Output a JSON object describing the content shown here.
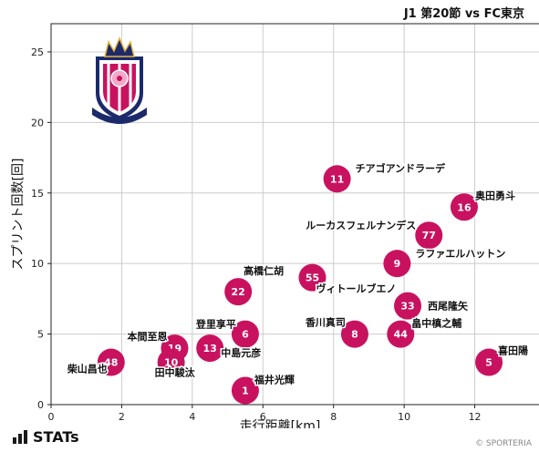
{
  "header": {
    "title": "J1 第20節 vs FC東京"
  },
  "footer": {
    "brand": "STATs",
    "copyright": "© SPORTERIA"
  },
  "colors": {
    "point": "#c8125f",
    "grid": "#cccccc",
    "axis": "#222222"
  },
  "chart_data": {
    "type": "scatter",
    "xlabel": "走行距離[km]",
    "ylabel": "スプリント回数[回]",
    "xlim": [
      0,
      14
    ],
    "ylim": [
      0,
      27
    ],
    "xticks": [
      0,
      2,
      4,
      6,
      8,
      10,
      12,
      14
    ],
    "yticks": [
      0,
      5,
      10,
      15,
      20,
      25
    ],
    "grid": true,
    "points": [
      {
        "number": "11",
        "name": "チアゴアンドラーデ",
        "x": 8.1,
        "y": 16
      },
      {
        "number": "16",
        "name": "奥田勇斗",
        "x": 11.7,
        "y": 14
      },
      {
        "number": "77",
        "name": "ルーカスフェルナンデス",
        "x": 10.7,
        "y": 12
      },
      {
        "number": "9",
        "name": "ラファエルハットン",
        "x": 9.8,
        "y": 10
      },
      {
        "number": "55",
        "name": "ヴィトールブエノ",
        "x": 7.4,
        "y": 9
      },
      {
        "number": "22",
        "name": "高橋仁胡",
        "x": 5.3,
        "y": 8
      },
      {
        "number": "33",
        "name": "西尾隆矢",
        "x": 10.1,
        "y": 7
      },
      {
        "number": "6",
        "name": "登里享平",
        "x": 5.5,
        "y": 5
      },
      {
        "number": "8",
        "name": "香川真司",
        "x": 8.6,
        "y": 5
      },
      {
        "number": "44",
        "name": "畠中槙之輔",
        "x": 9.9,
        "y": 5
      },
      {
        "number": "19",
        "name": "本間至恩",
        "x": 3.5,
        "y": 4
      },
      {
        "number": "13",
        "name": "中島元彦",
        "x": 4.5,
        "y": 4
      },
      {
        "number": "48",
        "name": "柴山昌也",
        "x": 1.7,
        "y": 3
      },
      {
        "number": "10",
        "name": "田中駿汰",
        "x": 3.4,
        "y": 3
      },
      {
        "number": "5",
        "name": "喜田陽",
        "x": 12.4,
        "y": 3
      },
      {
        "number": "1",
        "name": "福井光輝",
        "x": 5.5,
        "y": 1
      }
    ]
  }
}
